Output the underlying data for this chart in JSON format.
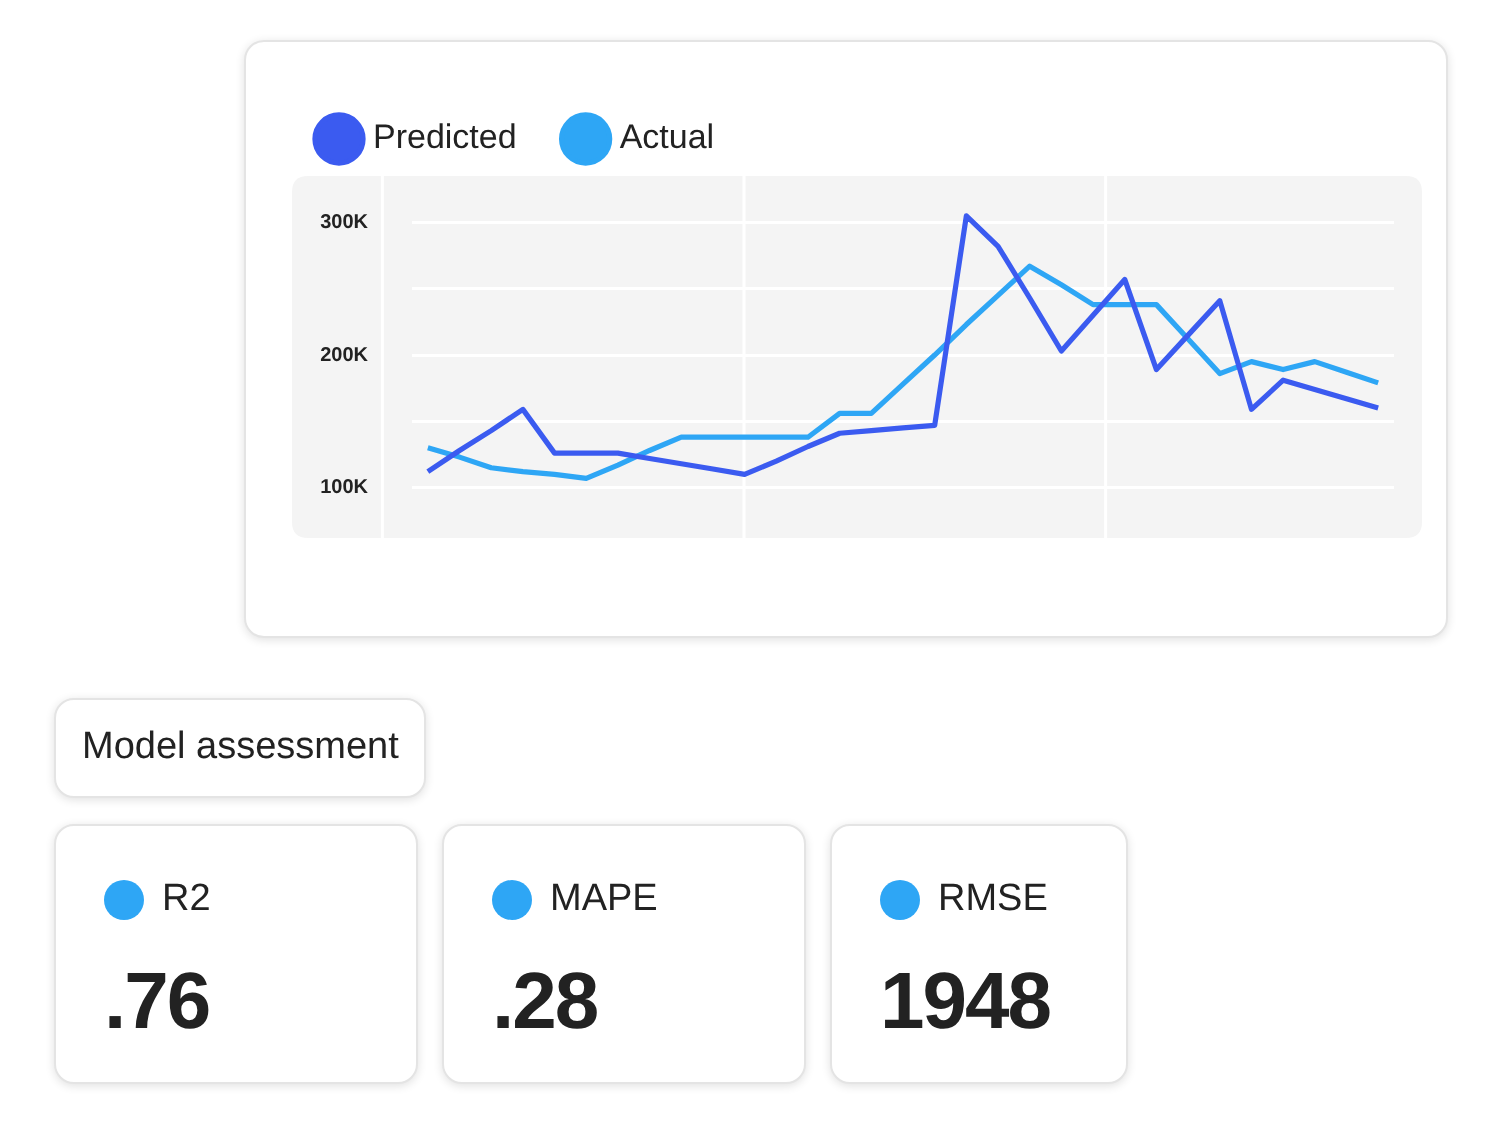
{
  "chart_data": [
    {
      "type": "line",
      "legend": "top left",
      "grid": true,
      "tick_labels": "y",
      "marker": "none",
      "line_style": "solid",
      "categories": [
        null,
        null,
        null,
        null,
        null,
        null,
        null,
        null,
        null,
        null,
        null,
        null,
        null,
        null,
        null,
        null,
        null,
        null,
        null,
        null,
        null,
        null,
        null,
        null,
        null,
        null,
        null,
        null,
        null,
        null,
        null
      ],
      "ylim": [
        62000,
        335000
      ],
      "yticks": [
        {
          "value": 100000,
          "label": "100K"
        },
        {
          "value": 150000,
          "label": null
        },
        {
          "value": 200000,
          "label": "200K"
        },
        {
          "value": 250000,
          "label": null
        },
        {
          "value": 300000,
          "label": "300K"
        }
      ],
      "series": [
        {
          "name": "Predicted",
          "color": "#3b5bf0",
          "values": [
            112000,
            128000,
            143000,
            159000,
            126000,
            126000,
            126000,
            122000,
            118000,
            114000,
            110000,
            120000,
            131000,
            141000,
            143000,
            145000,
            147000,
            305000,
            282000,
            243000,
            203000,
            230000,
            257000,
            189000,
            215000,
            241000,
            159000,
            181000,
            174000,
            167000,
            160000
          ]
        },
        {
          "name": "Actual",
          "color": "#2ea6f5",
          "values": [
            130000,
            123000,
            115000,
            112000,
            110000,
            107000,
            117000,
            128000,
            138000,
            138000,
            138000,
            138000,
            138000,
            156000,
            156000,
            178000,
            200000,
            223000,
            245000,
            267000,
            253000,
            238000,
            238000,
            238000,
            212000,
            186000,
            195000,
            189000,
            195000,
            187000,
            179000
          ]
        }
      ]
    },
    {
      "type": "other",
      "title": "Model assessment",
      "categories": [
        "R2",
        "MAPE",
        "RMSE"
      ],
      "value_labels": [
        ".76",
        ".28",
        "1948"
      ]
    }
  ]
}
